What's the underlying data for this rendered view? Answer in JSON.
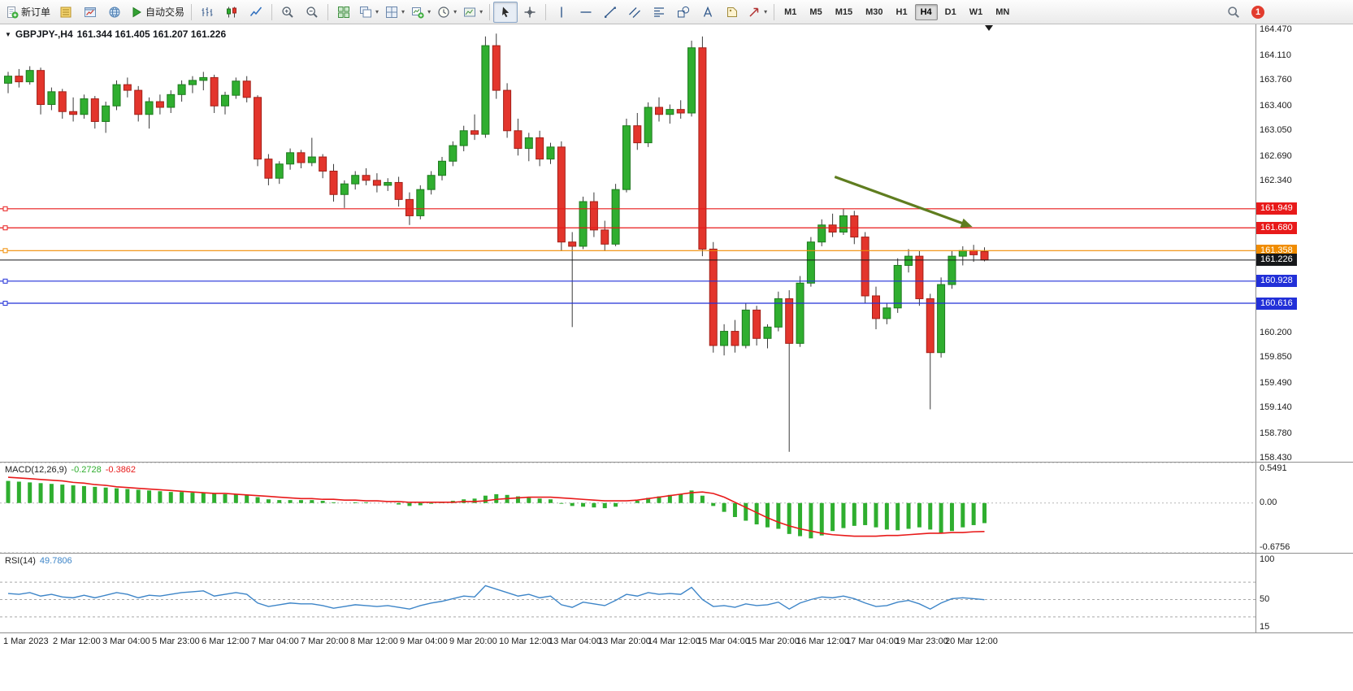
{
  "toolbar": {
    "buttons": [
      {
        "name": "new-order-button",
        "icon": "new-order-icon",
        "label": "新订单"
      },
      {
        "name": "market-depth-button",
        "icon": "market-depth-icon"
      },
      {
        "name": "charts-window-button",
        "icon": "chart-window-icon"
      },
      {
        "name": "community-button",
        "icon": "globe-icon"
      },
      {
        "name": "autotrading-button",
        "icon": "play-icon",
        "label": "自动交易"
      },
      {
        "type": "sep"
      },
      {
        "name": "bar-chart-button",
        "icon": "bars-icon"
      },
      {
        "name": "candlestick-chart-button",
        "icon": "candles-icon"
      },
      {
        "name": "line-chart-button",
        "icon": "line-icon"
      },
      {
        "type": "sep"
      },
      {
        "name": "zoom-in-button",
        "icon": "zoom-in-icon"
      },
      {
        "name": "zoom-out-button",
        "icon": "zoom-out-icon"
      },
      {
        "type": "sep"
      },
      {
        "name": "tile-windows-button",
        "icon": "tile-windows-icon"
      },
      {
        "name": "cascade-windows-button",
        "icon": "cascade-icon",
        "caret": true
      },
      {
        "name": "arrange-windows-button",
        "icon": "arrange-icon",
        "caret": true
      },
      {
        "name": "new-chart-button",
        "icon": "new-chart-icon",
        "caret": true
      },
      {
        "name": "periods-button",
        "icon": "clock-icon",
        "caret": true
      },
      {
        "name": "templates-button",
        "icon": "template-icon",
        "caret": true
      },
      {
        "type": "sep"
      },
      {
        "name": "cursor-button",
        "icon": "cursor-icon",
        "active": true
      },
      {
        "name": "crosshair-button",
        "icon": "crosshair-icon"
      },
      {
        "type": "sep"
      },
      {
        "name": "vertical-line-button",
        "icon": "vline-icon"
      },
      {
        "name": "horizontal-line-button",
        "icon": "hline-icon"
      },
      {
        "name": "trendline-button",
        "icon": "trendline-icon"
      },
      {
        "name": "channel-button",
        "icon": "channel-icon"
      },
      {
        "name": "fibonacci-button",
        "icon": "fibo-icon"
      },
      {
        "name": "shapes-button",
        "icon": "shapes-icon"
      },
      {
        "name": "text-button",
        "icon": "text-icon"
      },
      {
        "name": "label-button",
        "icon": "label-icon"
      },
      {
        "name": "arrows-button",
        "icon": "arrows-icon",
        "caret": true
      },
      {
        "type": "sep"
      }
    ],
    "timeframes": {
      "items": [
        "M1",
        "M5",
        "M15",
        "M30",
        "H1",
        "H4",
        "D1",
        "W1",
        "MN"
      ],
      "active": "H4"
    },
    "search_icon": "search-icon",
    "notification_badge": "1"
  },
  "chart": {
    "symbol": "GBPJPY-,H4",
    "quote_line": "161.344 161.405 161.207 161.226"
  },
  "colors": {
    "up": "#2fae2f",
    "down": "#e3352c",
    "up_border": "#1e7a1e",
    "down_border": "#a32018",
    "wick": "#3a3a3a",
    "bid": "#16181a",
    "macd_bar": "#2fae2f",
    "macd_signal": "#e81a1a",
    "rsi_line": "#3d85c8",
    "arrow": "#5f7d1f"
  },
  "chart_data": [
    {
      "type": "candlestick",
      "symbol": "GBPJPY-",
      "timeframe": "H4",
      "quote": {
        "open": "161.344",
        "high": "161.405",
        "low": "161.207",
        "close": "161.226"
      },
      "y_range": [
        158.38,
        164.55
      ],
      "price_axis_labels": [
        "164.470",
        "164.110",
        "163.760",
        "163.400",
        "163.050",
        "162.690",
        "162.340",
        "161.980",
        "161.630",
        "161.270",
        "160.920",
        "160.560",
        "160.200",
        "159.850",
        "159.490",
        "159.140",
        "158.780",
        "158.430"
      ],
      "time_axis_labels": [
        "1 Mar 2023",
        "2 Mar 12:00",
        "3 Mar 04:00",
        "5 Mar 23:00",
        "6 Mar 12:00",
        "7 Mar 04:00",
        "7 Mar 20:00",
        "8 Mar 12:00",
        "9 Mar 04:00",
        "9 Mar 20:00",
        "10 Mar 12:00",
        "13 Mar 04:00",
        "13 Mar 20:00",
        "14 Mar 12:00",
        "15 Mar 04:00",
        "15 Mar 20:00",
        "16 Mar 12:00",
        "17 Mar 04:00",
        "19 Mar 23:00",
        "20 Mar 12:00"
      ],
      "levels": [
        {
          "price": 161.949,
          "label": "161.949",
          "color": "#e81a1a"
        },
        {
          "price": 161.68,
          "label": "161.680",
          "color": "#e81a1a"
        },
        {
          "price": 161.358,
          "label": "161.358",
          "color": "#f08c00"
        },
        {
          "price": 160.928,
          "label": "160.928",
          "color": "#2230d8"
        },
        {
          "price": 160.616,
          "label": "160.616",
          "color": "#2230d8"
        }
      ],
      "bid": {
        "price": 161.226,
        "label": "161.226"
      },
      "trend_arrow": {
        "from": {
          "index": 76.2,
          "price": 162.4
        },
        "to": {
          "index": 88.4,
          "price": 161.72
        }
      },
      "candles": [
        [
          163.72,
          163.88,
          163.58,
          163.82
        ],
        [
          163.82,
          163.92,
          163.66,
          163.74
        ],
        [
          163.74,
          163.96,
          163.7,
          163.9
        ],
        [
          163.9,
          163.94,
          163.28,
          163.42
        ],
        [
          163.42,
          163.66,
          163.34,
          163.6
        ],
        [
          163.6,
          163.64,
          163.22,
          163.32
        ],
        [
          163.32,
          163.52,
          163.18,
          163.28
        ],
        [
          163.28,
          163.56,
          163.22,
          163.5
        ],
        [
          163.5,
          163.54,
          163.08,
          163.18
        ],
        [
          163.18,
          163.46,
          163.02,
          163.4
        ],
        [
          163.4,
          163.76,
          163.34,
          163.7
        ],
        [
          163.7,
          163.8,
          163.52,
          163.62
        ],
        [
          163.62,
          163.68,
          163.18,
          163.28
        ],
        [
          163.28,
          163.52,
          163.08,
          163.46
        ],
        [
          163.46,
          163.56,
          163.28,
          163.38
        ],
        [
          163.38,
          163.62,
          163.3,
          163.56
        ],
        [
          163.56,
          163.76,
          163.46,
          163.7
        ],
        [
          163.7,
          163.82,
          163.58,
          163.76
        ],
        [
          163.76,
          163.88,
          163.62,
          163.8
        ],
        [
          163.8,
          163.84,
          163.3,
          163.4
        ],
        [
          163.4,
          163.6,
          163.28,
          163.55
        ],
        [
          163.55,
          163.8,
          163.5,
          163.75
        ],
        [
          163.75,
          163.82,
          163.45,
          163.52
        ],
        [
          163.52,
          163.55,
          162.55,
          162.65
        ],
        [
          162.65,
          162.72,
          162.28,
          162.38
        ],
        [
          162.38,
          162.62,
          162.3,
          162.58
        ],
        [
          162.58,
          162.8,
          162.5,
          162.74
        ],
        [
          162.74,
          162.78,
          162.52,
          162.6
        ],
        [
          162.6,
          162.95,
          162.55,
          162.68
        ],
        [
          162.68,
          162.72,
          162.38,
          162.48
        ],
        [
          162.48,
          162.58,
          162.05,
          162.15
        ],
        [
          162.15,
          162.35,
          161.96,
          162.3
        ],
        [
          162.3,
          162.48,
          162.22,
          162.42
        ],
        [
          162.42,
          162.52,
          162.28,
          162.35
        ],
        [
          162.35,
          162.45,
          162.18,
          162.28
        ],
        [
          162.28,
          162.38,
          162.2,
          162.32
        ],
        [
          162.32,
          162.4,
          161.98,
          162.08
        ],
        [
          162.08,
          162.18,
          161.72,
          161.85
        ],
        [
          161.85,
          162.28,
          161.8,
          162.22
        ],
        [
          162.22,
          162.48,
          162.15,
          162.42
        ],
        [
          162.42,
          162.68,
          162.35,
          162.62
        ],
        [
          162.62,
          162.9,
          162.55,
          162.84
        ],
        [
          162.84,
          163.12,
          162.76,
          163.05
        ],
        [
          163.05,
          163.28,
          162.92,
          163.0
        ],
        [
          163.0,
          164.38,
          162.95,
          164.25
        ],
        [
          164.25,
          164.42,
          163.5,
          163.62
        ],
        [
          163.62,
          163.72,
          162.95,
          163.05
        ],
        [
          163.05,
          163.22,
          162.7,
          162.8
        ],
        [
          162.8,
          163.02,
          162.62,
          162.95
        ],
        [
          162.95,
          163.05,
          162.55,
          162.65
        ],
        [
          162.65,
          162.88,
          162.58,
          162.82
        ],
        [
          162.82,
          162.9,
          161.35,
          161.48
        ],
        [
          161.48,
          161.62,
          160.28,
          161.42
        ],
        [
          161.42,
          162.12,
          161.38,
          162.05
        ],
        [
          162.05,
          162.18,
          161.55,
          161.65
        ],
        [
          161.65,
          161.78,
          161.35,
          161.45
        ],
        [
          161.45,
          162.3,
          161.42,
          162.22
        ],
        [
          162.22,
          163.22,
          162.18,
          163.12
        ],
        [
          163.12,
          163.3,
          162.78,
          162.88
        ],
        [
          162.88,
          163.45,
          162.82,
          163.38
        ],
        [
          163.38,
          163.52,
          163.18,
          163.28
        ],
        [
          163.28,
          163.42,
          163.15,
          163.35
        ],
        [
          163.35,
          163.48,
          163.22,
          163.3
        ],
        [
          163.3,
          164.32,
          163.25,
          164.22
        ],
        [
          164.22,
          164.38,
          161.28,
          161.38
        ],
        [
          161.38,
          161.48,
          159.92,
          160.02
        ],
        [
          160.02,
          160.32,
          159.88,
          160.22
        ],
        [
          160.22,
          160.38,
          159.92,
          160.02
        ],
        [
          160.02,
          160.62,
          159.98,
          160.52
        ],
        [
          160.52,
          160.58,
          160.02,
          160.12
        ],
        [
          160.12,
          160.32,
          159.98,
          160.28
        ],
        [
          160.28,
          160.78,
          160.22,
          160.68
        ],
        [
          160.68,
          160.8,
          158.52,
          160.05
        ],
        [
          160.05,
          161.0,
          160.0,
          160.9
        ],
        [
          160.9,
          161.55,
          160.85,
          161.48
        ],
        [
          161.48,
          161.8,
          161.42,
          161.72
        ],
        [
          161.72,
          161.88,
          161.55,
          161.62
        ],
        [
          161.62,
          161.95,
          161.58,
          161.85
        ],
        [
          161.85,
          161.92,
          161.45,
          161.55
        ],
        [
          161.55,
          161.62,
          160.62,
          160.72
        ],
        [
          160.72,
          160.85,
          160.25,
          160.4
        ],
        [
          160.4,
          160.62,
          160.32,
          160.55
        ],
        [
          160.55,
          161.25,
          160.48,
          161.15
        ],
        [
          161.15,
          161.38,
          161.05,
          161.28
        ],
        [
          161.28,
          161.35,
          160.58,
          160.68
        ],
        [
          160.68,
          160.75,
          159.12,
          159.92
        ],
        [
          159.92,
          160.98,
          159.85,
          160.88
        ],
        [
          160.88,
          161.35,
          160.82,
          161.28
        ],
        [
          161.28,
          161.42,
          161.15,
          161.36
        ],
        [
          161.36,
          161.44,
          161.2,
          161.3
        ],
        [
          161.344,
          161.405,
          161.207,
          161.226
        ]
      ]
    },
    {
      "type": "bar",
      "name": "MACD(12,26,9)",
      "value_main": "-0.2728",
      "value_signal": "-0.3862",
      "y_range": [
        -0.6756,
        0.5491
      ],
      "axis": [
        {
          "label": "0.5491",
          "value": 0.5491
        },
        {
          "label": "0.00",
          "value": 0
        },
        {
          "label": "-0.6756",
          "value": -0.6756
        }
      ],
      "values": [
        0.3,
        0.29,
        0.28,
        0.27,
        0.26,
        0.25,
        0.24,
        0.23,
        0.22,
        0.21,
        0.2,
        0.19,
        0.18,
        0.17,
        0.16,
        0.15,
        0.15,
        0.14,
        0.14,
        0.13,
        0.12,
        0.12,
        0.11,
        0.08,
        0.05,
        0.04,
        0.04,
        0.04,
        0.04,
        0.03,
        0.01,
        0.0,
        0.01,
        0.01,
        0.0,
        0.0,
        -0.02,
        -0.04,
        -0.03,
        -0.01,
        0.01,
        0.03,
        0.05,
        0.06,
        0.1,
        0.12,
        0.11,
        0.09,
        0.07,
        0.06,
        0.05,
        -0.01,
        -0.04,
        -0.05,
        -0.06,
        -0.07,
        -0.05,
        0.0,
        0.03,
        0.07,
        0.09,
        0.11,
        0.12,
        0.17,
        0.1,
        -0.04,
        -0.12,
        -0.19,
        -0.24,
        -0.29,
        -0.33,
        -0.35,
        -0.42,
        -0.45,
        -0.48,
        -0.44,
        -0.38,
        -0.34,
        -0.31,
        -0.3,
        -0.33,
        -0.36,
        -0.37,
        -0.35,
        -0.33,
        -0.36,
        -0.41,
        -0.38,
        -0.33,
        -0.3,
        -0.2728
      ],
      "signal": [
        0.35,
        0.34,
        0.33,
        0.32,
        0.31,
        0.3,
        0.28,
        0.27,
        0.25,
        0.24,
        0.22,
        0.21,
        0.2,
        0.19,
        0.18,
        0.17,
        0.16,
        0.15,
        0.14,
        0.13,
        0.13,
        0.12,
        0.11,
        0.1,
        0.09,
        0.08,
        0.07,
        0.06,
        0.06,
        0.05,
        0.05,
        0.04,
        0.04,
        0.03,
        0.03,
        0.02,
        0.02,
        0.01,
        0.01,
        0.01,
        0.01,
        0.01,
        0.02,
        0.02,
        0.03,
        0.05,
        0.06,
        0.07,
        0.08,
        0.08,
        0.08,
        0.07,
        0.06,
        0.05,
        0.04,
        0.03,
        0.03,
        0.03,
        0.04,
        0.06,
        0.08,
        0.1,
        0.12,
        0.14,
        0.15,
        0.13,
        0.08,
        0.01,
        -0.06,
        -0.13,
        -0.2,
        -0.26,
        -0.31,
        -0.35,
        -0.38,
        -0.41,
        -0.43,
        -0.44,
        -0.45,
        -0.45,
        -0.45,
        -0.44,
        -0.44,
        -0.43,
        -0.42,
        -0.41,
        -0.41,
        -0.4,
        -0.4,
        -0.39,
        -0.3862
      ]
    },
    {
      "type": "line",
      "name": "RSI(14)",
      "value": "49.7806",
      "y_range": [
        12,
        103
      ],
      "levels": [
        70,
        50,
        30
      ],
      "axis": [
        {
          "label": "100",
          "value": 100
        },
        {
          "label": "50",
          "value": 50
        },
        {
          "label": "15",
          "value": 15
        }
      ],
      "values": [
        57,
        56,
        58,
        54,
        56,
        53,
        52,
        55,
        52,
        55,
        58,
        56,
        52,
        55,
        54,
        56,
        58,
        59,
        60,
        54,
        56,
        58,
        56,
        46,
        42,
        44,
        46,
        45,
        45,
        43,
        40,
        42,
        44,
        43,
        42,
        43,
        41,
        39,
        43,
        46,
        48,
        51,
        54,
        53,
        66,
        62,
        58,
        54,
        56,
        52,
        54,
        44,
        41,
        47,
        45,
        43,
        49,
        56,
        54,
        58,
        56,
        57,
        56,
        64,
        50,
        42,
        43,
        41,
        45,
        43,
        44,
        47,
        39,
        46,
        50,
        53,
        52,
        54,
        51,
        46,
        42,
        43,
        47,
        49,
        45,
        39,
        46,
        51,
        52,
        51,
        49.78
      ]
    }
  ]
}
